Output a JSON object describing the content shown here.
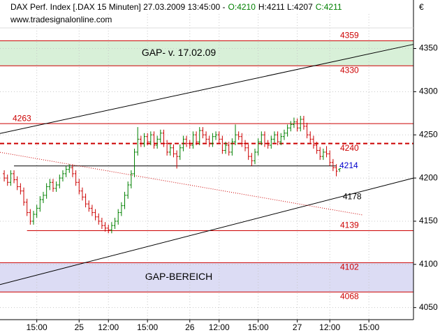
{
  "chart_data": {
    "type": "ohlc",
    "title": "DAX Perf. Index [.DAX  15 Minuten] 27.03.2009 13:45:00 -",
    "quote_labels": [
      "O:4210",
      "H:4211 L:4207",
      "C:4211"
    ],
    "subtitle": "www.tradesignalonline.com",
    "currency": "€",
    "up_color": "#008000",
    "down_color": "#cc0000",
    "grid": true,
    "xlim": [
      -1.3,
      125.7
    ],
    "ylim": [
      4036,
      4390
    ],
    "yticks": [
      4050,
      4100,
      4150,
      4200,
      4250,
      4300,
      4350
    ],
    "xticks": [
      {
        "value": 10,
        "label": "15:00"
      },
      {
        "value": 23,
        "label": "25"
      },
      {
        "value": 32,
        "label": "12:00"
      },
      {
        "value": 44,
        "label": "15:00"
      },
      {
        "value": 57,
        "label": "26"
      },
      {
        "value": 66,
        "label": "12:00"
      },
      {
        "value": 78,
        "label": "15:00"
      },
      {
        "value": 90,
        "label": "27"
      },
      {
        "value": 100,
        "label": "12:00"
      },
      {
        "value": 112,
        "label": "15:00"
      }
    ],
    "x": [
      0,
      1,
      2,
      3,
      4,
      5,
      6,
      7,
      8,
      9,
      10,
      11,
      12,
      13,
      14,
      15,
      16,
      17,
      18,
      19,
      20,
      21,
      22,
      23,
      24,
      25,
      26,
      27,
      28,
      29,
      30,
      31,
      32,
      33,
      34,
      35,
      36,
      37,
      38,
      39,
      40,
      41,
      42,
      43,
      44,
      45,
      46,
      47,
      48,
      49,
      50,
      51,
      52,
      53,
      54,
      55,
      56,
      57,
      58,
      59,
      60,
      61,
      62,
      63,
      64,
      65,
      66,
      67,
      68,
      69,
      70,
      71,
      72,
      73,
      74,
      75,
      76,
      77,
      78,
      79,
      80,
      81,
      82,
      83,
      84,
      85,
      86,
      87,
      88,
      89,
      90,
      91,
      92,
      93,
      94,
      95,
      96,
      97,
      98,
      99,
      100,
      101,
      102,
      103
    ],
    "ohlc": [
      [
        4205,
        4209,
        4196,
        4200
      ],
      [
        4200,
        4204,
        4191,
        4195
      ],
      [
        4195,
        4209,
        4191,
        4205
      ],
      [
        4205,
        4209,
        4194,
        4198
      ],
      [
        4198,
        4202,
        4186,
        4190
      ],
      [
        4190,
        4194,
        4181,
        4185
      ],
      [
        4185,
        4189,
        4168,
        4172
      ],
      [
        4172,
        4176,
        4156,
        4160
      ],
      [
        4160,
        4164,
        4146,
        4150
      ],
      [
        4150,
        4162,
        4146,
        4158
      ],
      [
        4158,
        4169,
        4154,
        4165
      ],
      [
        4165,
        4179,
        4161,
        4175
      ],
      [
        4175,
        4184,
        4171,
        4180
      ],
      [
        4180,
        4194,
        4176,
        4190
      ],
      [
        4190,
        4199,
        4186,
        4195
      ],
      [
        4195,
        4199,
        4184,
        4188
      ],
      [
        4188,
        4196,
        4184,
        4192
      ],
      [
        4192,
        4204,
        4188,
        4200
      ],
      [
        4200,
        4209,
        4196,
        4205
      ],
      [
        4205,
        4214,
        4201,
        4210
      ],
      [
        4210,
        4216,
        4206,
        4212
      ],
      [
        4212,
        4216,
        4201,
        4205
      ],
      [
        4205,
        4209,
        4191,
        4195
      ],
      [
        4195,
        4199,
        4181,
        4185
      ],
      [
        4185,
        4189,
        4174,
        4178
      ],
      [
        4178,
        4182,
        4166,
        4170
      ],
      [
        4170,
        4174,
        4161,
        4165
      ],
      [
        4165,
        4169,
        4156,
        4160
      ],
      [
        4160,
        4164,
        4151,
        4155
      ],
      [
        4155,
        4159,
        4146,
        4150
      ],
      [
        4150,
        4154,
        4141,
        4145
      ],
      [
        4145,
        4149,
        4138,
        4142
      ],
      [
        4142,
        4146,
        4136,
        4140
      ],
      [
        4140,
        4149,
        4136,
        4145
      ],
      [
        4145,
        4154,
        4141,
        4150
      ],
      [
        4150,
        4164,
        4146,
        4160
      ],
      [
        4160,
        4172,
        4156,
        4168
      ],
      [
        4168,
        4184,
        4164,
        4180
      ],
      [
        4180,
        4196,
        4176,
        4192
      ],
      [
        4192,
        4209,
        4188,
        4205
      ],
      [
        4205,
        4234,
        4201,
        4230
      ],
      [
        4230,
        4259,
        4226,
        4245
      ],
      [
        4245,
        4249,
        4236,
        4240
      ],
      [
        4240,
        4252,
        4236,
        4248
      ],
      [
        4248,
        4252,
        4238,
        4242
      ],
      [
        4242,
        4254,
        4238,
        4250
      ],
      [
        4250,
        4254,
        4234,
        4238
      ],
      [
        4238,
        4249,
        4234,
        4245
      ],
      [
        4245,
        4256,
        4241,
        4252
      ],
      [
        4252,
        4256,
        4236,
        4240
      ],
      [
        4240,
        4244,
        4226,
        4230
      ],
      [
        4230,
        4239,
        4226,
        4235
      ],
      [
        4235,
        4239,
        4224,
        4228
      ],
      [
        4228,
        4232,
        4211,
        4225
      ],
      [
        4225,
        4239,
        4221,
        4235
      ],
      [
        4235,
        4249,
        4231,
        4245
      ],
      [
        4245,
        4249,
        4236,
        4240
      ],
      [
        4240,
        4244,
        4234,
        4238
      ],
      [
        4238,
        4254,
        4234,
        4250
      ],
      [
        4250,
        4254,
        4238,
        4242
      ],
      [
        4242,
        4259,
        4238,
        4255
      ],
      [
        4255,
        4259,
        4246,
        4250
      ],
      [
        4250,
        4254,
        4241,
        4245
      ],
      [
        4245,
        4249,
        4236,
        4240
      ],
      [
        4240,
        4252,
        4236,
        4248
      ],
      [
        4248,
        4254,
        4244,
        4250
      ],
      [
        4250,
        4254,
        4241,
        4245
      ],
      [
        4245,
        4249,
        4228,
        4232
      ],
      [
        4232,
        4242,
        4228,
        4238
      ],
      [
        4238,
        4242,
        4226,
        4230
      ],
      [
        4230,
        4246,
        4226,
        4242
      ],
      [
        4242,
        4262,
        4238,
        4250
      ],
      [
        4250,
        4254,
        4244,
        4248
      ],
      [
        4248,
        4252,
        4236,
        4240
      ],
      [
        4240,
        4244,
        4231,
        4235
      ],
      [
        4235,
        4239,
        4221,
        4225
      ],
      [
        4225,
        4229,
        4214,
        4220
      ],
      [
        4220,
        4234,
        4216,
        4230
      ],
      [
        4230,
        4246,
        4226,
        4242
      ],
      [
        4242,
        4254,
        4238,
        4250
      ],
      [
        4250,
        4254,
        4236,
        4240
      ],
      [
        4240,
        4244,
        4234,
        4238
      ],
      [
        4238,
        4249,
        4234,
        4245
      ],
      [
        4245,
        4254,
        4241,
        4250
      ],
      [
        4250,
        4254,
        4238,
        4242
      ],
      [
        4242,
        4252,
        4238,
        4248
      ],
      [
        4248,
        4256,
        4244,
        4252
      ],
      [
        4252,
        4262,
        4248,
        4258
      ],
      [
        4258,
        4266,
        4254,
        4262
      ],
      [
        4262,
        4270,
        4258,
        4265
      ],
      [
        4265,
        4269,
        4254,
        4258
      ],
      [
        4258,
        4272,
        4254,
        4268
      ],
      [
        4268,
        4272,
        4256,
        4260
      ],
      [
        4260,
        4264,
        4246,
        4250
      ],
      [
        4250,
        4254,
        4241,
        4245
      ],
      [
        4245,
        4249,
        4234,
        4238
      ],
      [
        4238,
        4242,
        4228,
        4232
      ],
      [
        4232,
        4236,
        4221,
        4225
      ],
      [
        4225,
        4234,
        4221,
        4230
      ],
      [
        4230,
        4237,
        4224,
        4228
      ],
      [
        4228,
        4232,
        4214,
        4218
      ],
      [
        4218,
        4222,
        4208,
        4212
      ],
      [
        4212,
        4216,
        4202,
        4208
      ],
      [
        4210,
        4211,
        4207,
        4211
      ]
    ],
    "bands": [
      {
        "from": 4330,
        "to": 4359,
        "color": "#d8f0d8",
        "label": "GAP- v. 17.02.09"
      },
      {
        "from": 4068,
        "to": 4102,
        "color": "#dcdcf4",
        "label": "GAP-BEREICH"
      }
    ],
    "levels": [
      {
        "value": 4359,
        "color": "#cc0000"
      },
      {
        "value": 4330,
        "color": "#cc0000"
      },
      {
        "value": 4263,
        "color": "#cc0000"
      },
      {
        "value": 4240,
        "color": "#cc0000",
        "dashed": true
      },
      {
        "value": 4214,
        "color": "#000000",
        "label_color": "#0000cc",
        "x_from": 3,
        "x_to": 102
      },
      {
        "value": 4139,
        "color": "#cc0000",
        "x_from": 7
      },
      {
        "value": 4102,
        "color": "#cc0000"
      },
      {
        "value": 4068,
        "color": "#cc0000"
      }
    ],
    "trendlines": [
      {
        "x": [
          -1.3,
          125.7
        ],
        "y": [
          4251.6,
          4354.8
        ],
        "color": "#000000"
      },
      {
        "x": [
          -1.3,
          125.7
        ],
        "y": [
          4076.6,
          4200
        ],
        "color": "#000000"
      },
      {
        "x": [
          -1.3,
          110
        ],
        "y": [
          4229.8,
          4157.3
        ],
        "color": "#cc0000",
        "dotted": true
      }
    ],
    "annotations": [
      {
        "text": "4178",
        "x": 104,
        "y": 4178
      }
    ]
  }
}
